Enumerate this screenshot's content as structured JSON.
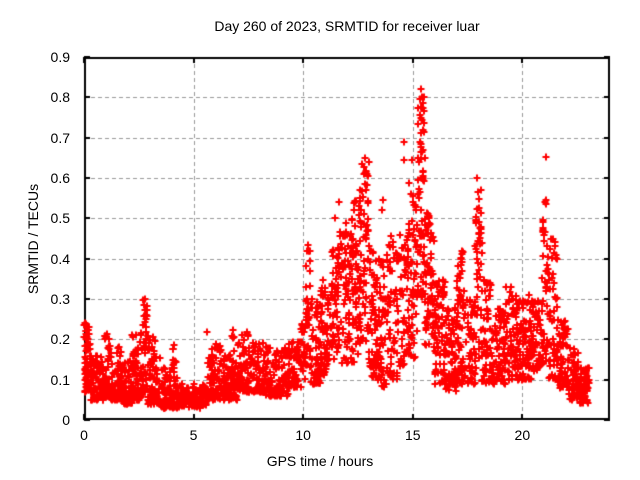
{
  "chart_data": {
    "type": "scatter",
    "title": "Day 260 of 2023, SRMTID for receiver luar",
    "xlabel": "GPS time / hours",
    "ylabel": "SRMTID / TECUs",
    "xlim": [
      0,
      24
    ],
    "ylim": [
      0,
      0.9
    ],
    "xtick_values": [
      0,
      5,
      10,
      15,
      20
    ],
    "xtick_labels": [
      "0",
      "5",
      "10",
      "15",
      "20"
    ],
    "ytick_values": [
      0,
      0.1,
      0.2,
      0.3,
      0.4,
      0.5,
      0.6,
      0.7,
      0.8,
      0.9
    ],
    "ytick_labels": [
      "0",
      "0.1",
      "0.2",
      "0.3",
      "0.4",
      "0.5",
      "0.6",
      "0.7",
      "0.8",
      "0.9"
    ],
    "grid": true,
    "legend": "none",
    "marker": "plus",
    "marker_color": "#ff0000",
    "grid_color": "#989898",
    "frame_color": "#000000",
    "seed": 7,
    "cluster_fields": [
      "t_start",
      "t_end",
      "count",
      "y_min",
      "y_max",
      "bottom_bias"
    ],
    "clusters": [
      [
        0.0,
        0.3,
        55,
        0.07,
        0.24,
        1.4
      ],
      [
        0.3,
        0.9,
        85,
        0.05,
        0.16,
        1.6
      ],
      [
        0.9,
        1.2,
        45,
        0.06,
        0.22,
        1.8
      ],
      [
        1.2,
        1.7,
        65,
        0.05,
        0.18,
        1.8
      ],
      [
        1.7,
        2.2,
        65,
        0.04,
        0.15,
        1.6
      ],
      [
        2.2,
        2.6,
        60,
        0.05,
        0.22,
        1.8
      ],
      [
        2.6,
        2.9,
        42,
        0.07,
        0.3,
        1.7
      ],
      [
        2.9,
        3.5,
        75,
        0.04,
        0.21,
        2.0
      ],
      [
        3.5,
        4.3,
        85,
        0.03,
        0.13,
        1.5
      ],
      [
        4.0,
        4.2,
        12,
        0.05,
        0.19,
        1.2
      ],
      [
        4.3,
        5.6,
        115,
        0.03,
        0.09,
        1.3
      ],
      [
        5.6,
        6.3,
        80,
        0.05,
        0.22,
        1.9
      ],
      [
        6.3,
        7.0,
        80,
        0.05,
        0.16,
        1.5
      ],
      [
        6.75,
        6.9,
        10,
        0.1,
        0.23,
        1.0
      ],
      [
        7.0,
        7.6,
        70,
        0.07,
        0.22,
        1.8
      ],
      [
        7.6,
        8.3,
        80,
        0.07,
        0.2,
        1.7
      ],
      [
        8.3,
        9.3,
        95,
        0.06,
        0.18,
        1.5
      ],
      [
        9.3,
        9.9,
        70,
        0.08,
        0.2,
        1.4
      ],
      [
        9.9,
        10.12,
        25,
        0.1,
        0.25,
        1.2
      ],
      [
        10.12,
        10.35,
        35,
        0.13,
        0.44,
        1.3
      ],
      [
        10.35,
        10.8,
        55,
        0.09,
        0.3,
        1.7
      ],
      [
        10.8,
        11.2,
        55,
        0.11,
        0.35,
        1.5
      ],
      [
        11.2,
        11.8,
        70,
        0.14,
        0.47,
        1.0
      ],
      [
        11.8,
        12.3,
        70,
        0.14,
        0.5,
        1.1
      ],
      [
        12.3,
        12.6,
        50,
        0.16,
        0.55,
        1.1
      ],
      [
        12.6,
        13.0,
        62,
        0.18,
        0.64,
        1.1
      ],
      [
        13.0,
        13.4,
        60,
        0.1,
        0.45,
        1.4
      ],
      [
        13.4,
        13.8,
        55,
        0.08,
        0.4,
        1.4
      ],
      [
        13.8,
        14.4,
        62,
        0.1,
        0.47,
        1.3
      ],
      [
        14.4,
        14.8,
        45,
        0.13,
        0.5,
        1.2
      ],
      [
        14.8,
        15.2,
        55,
        0.14,
        0.6,
        1.3
      ],
      [
        15.2,
        15.55,
        62,
        0.3,
        0.8,
        1.1
      ],
      [
        15.55,
        16.0,
        68,
        0.18,
        0.52,
        1.3
      ],
      [
        16.0,
        16.5,
        70,
        0.08,
        0.35,
        1.5
      ],
      [
        16.5,
        17.0,
        65,
        0.07,
        0.28,
        1.5
      ],
      [
        17.0,
        17.45,
        60,
        0.09,
        0.42,
        1.3
      ],
      [
        17.45,
        17.85,
        48,
        0.09,
        0.3,
        1.5
      ],
      [
        17.85,
        18.15,
        45,
        0.12,
        0.58,
        1.0
      ],
      [
        18.15,
        18.6,
        55,
        0.09,
        0.35,
        1.5
      ],
      [
        18.6,
        19.2,
        70,
        0.09,
        0.28,
        1.4
      ],
      [
        19.2,
        19.8,
        72,
        0.1,
        0.33,
        1.5
      ],
      [
        19.8,
        20.4,
        72,
        0.1,
        0.3,
        1.4
      ],
      [
        20.4,
        20.9,
        65,
        0.12,
        0.3,
        1.3
      ],
      [
        20.9,
        21.2,
        42,
        0.14,
        0.55,
        1.0
      ],
      [
        21.2,
        21.6,
        50,
        0.1,
        0.45,
        1.6
      ],
      [
        21.6,
        22.1,
        62,
        0.08,
        0.25,
        1.5
      ],
      [
        22.1,
        22.6,
        60,
        0.05,
        0.18,
        1.4
      ],
      [
        22.6,
        23.05,
        58,
        0.04,
        0.13,
        1.3
      ]
    ],
    "outlier_points": [
      [
        15.38,
        0.82
      ],
      [
        15.33,
        0.795
      ],
      [
        15.42,
        0.8
      ],
      [
        15.45,
        0.785
      ],
      [
        15.36,
        0.775
      ],
      [
        15.4,
        0.745
      ],
      [
        15.47,
        0.72
      ],
      [
        15.35,
        0.69
      ],
      [
        15.43,
        0.665
      ],
      [
        14.62,
        0.69
      ],
      [
        14.58,
        0.645
      ],
      [
        14.97,
        0.645
      ],
      [
        12.83,
        0.65
      ],
      [
        12.78,
        0.628
      ],
      [
        12.88,
        0.615
      ],
      [
        21.07,
        0.652
      ],
      [
        21.1,
        0.545
      ],
      [
        21.3,
        0.45
      ],
      [
        17.93,
        0.6
      ],
      [
        17.97,
        0.565
      ],
      [
        18.0,
        0.525
      ],
      [
        18.02,
        0.49
      ],
      [
        10.22,
        0.435
      ],
      [
        10.18,
        0.42
      ],
      [
        2.78,
        0.3
      ],
      [
        2.75,
        0.285
      ],
      [
        11.62,
        0.54
      ],
      [
        11.45,
        0.5
      ],
      [
        12.3,
        0.52
      ],
      [
        13.62,
        0.545
      ],
      [
        13.58,
        0.52
      ],
      [
        14.12,
        0.43
      ],
      [
        16.2,
        0.345
      ],
      [
        17.25,
        0.42
      ],
      [
        17.22,
        0.385
      ],
      [
        19.5,
        0.33
      ],
      [
        20.3,
        0.31
      ],
      [
        0.05,
        0.24
      ]
    ]
  }
}
